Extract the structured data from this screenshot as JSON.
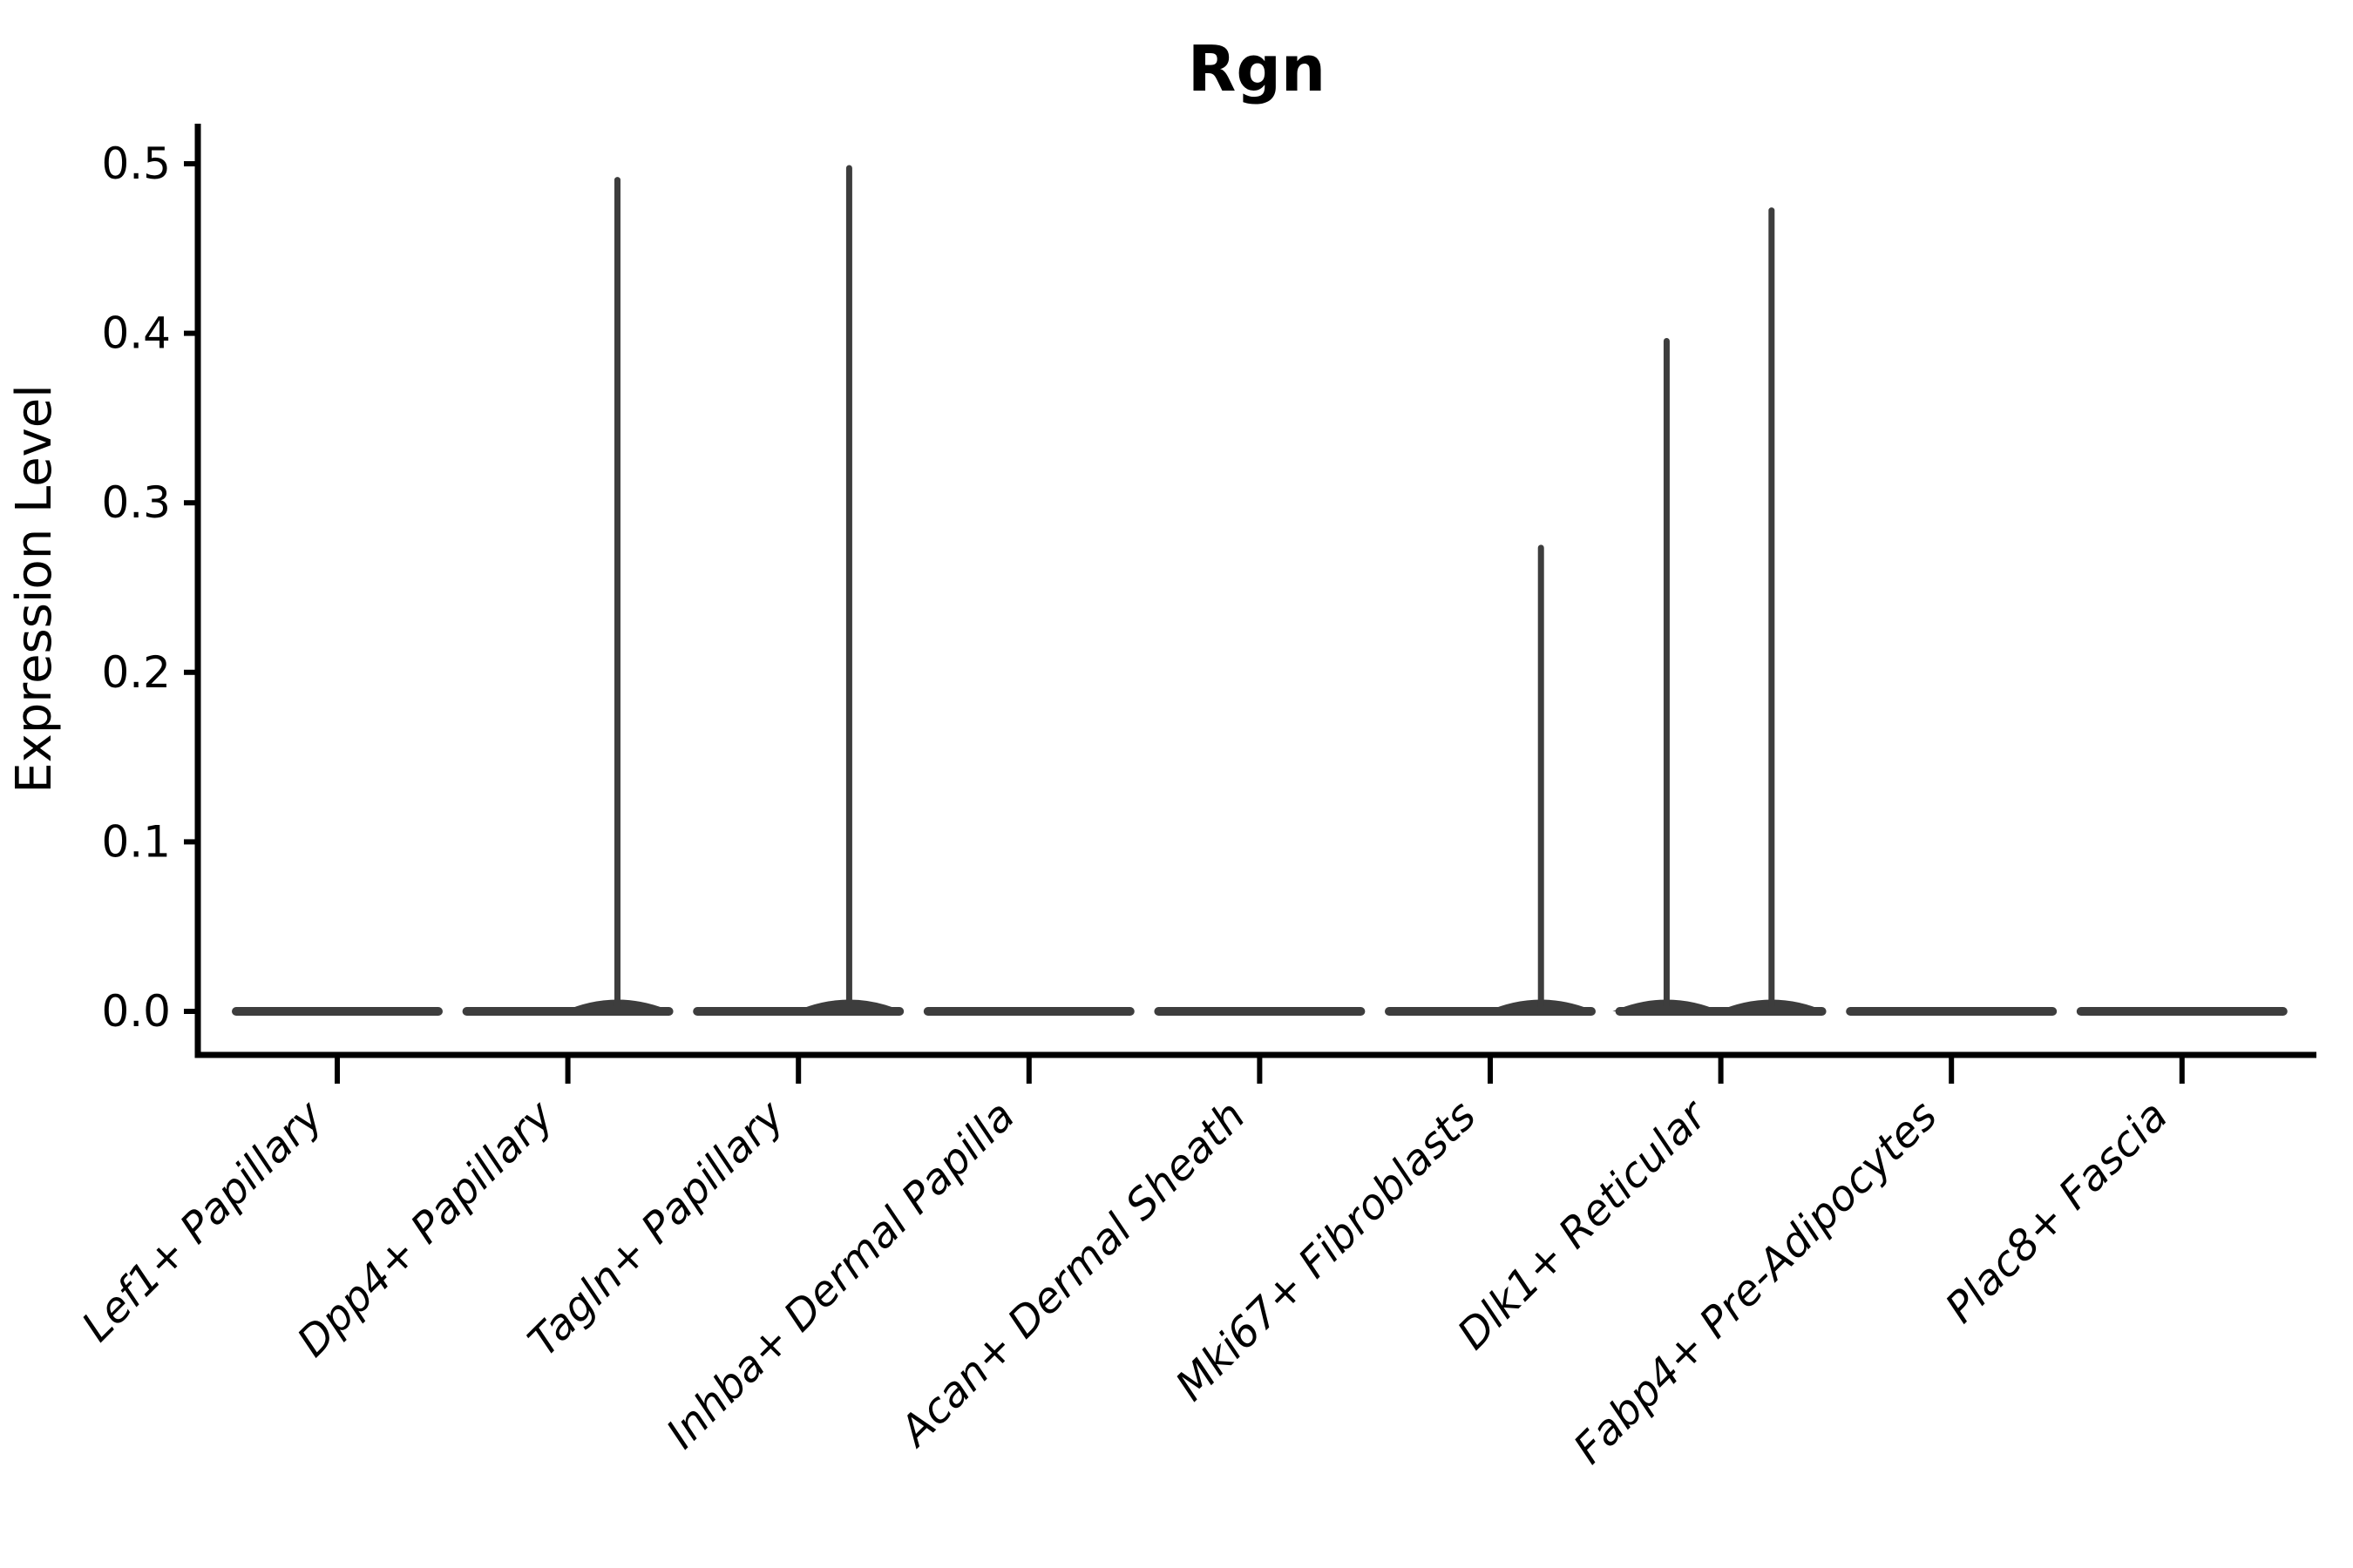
{
  "title": "Rgn",
  "y_axis": {
    "label": "Expression Level",
    "tick_labels": [
      "0.0",
      "0.1",
      "0.2",
      "0.3",
      "0.4",
      "0.5"
    ]
  },
  "x_axis": {
    "tick_labels": [
      "Lef1+ Papillary",
      "Dpp4+ Papillary",
      "Tagln+ Papillary",
      "Inhba+ Dermal Papilla",
      "Acan+ Dermal Sheath",
      "Mki67+ Fibroblasts",
      "Dlk1+ Reticular",
      "Fabp4+ Pre-Adipocytes",
      "Plac8+ Fascia"
    ]
  },
  "chart_data": {
    "type": "violin",
    "title": "Rgn",
    "xlabel": "",
    "ylabel": "Expression Level",
    "ylim": [
      -0.026,
      0.525
    ],
    "yticks": [
      0.0,
      0.1,
      0.2,
      0.3,
      0.4,
      0.5
    ],
    "ytick_labels": [
      "0.0",
      "0.1",
      "0.2",
      "0.3",
      "0.4",
      "0.5"
    ],
    "grid": false,
    "legend": "none",
    "categories": [
      "Lef1+ Papillary",
      "Dpp4+ Papillary",
      "Tagln+ Papillary",
      "Inhba+ Dermal Papilla",
      "Acan+ Dermal Sheath",
      "Mki67+ Fibroblasts",
      "Dlk1+ Reticular",
      "Fabp4+ Pre-Adipocytes",
      "Plac8+ Fascia"
    ],
    "violins": [
      {
        "category": "Lef1+ Papillary",
        "body_value": 0.0,
        "tails": []
      },
      {
        "category": "Dpp4+ Papillary",
        "body_value": 0.0,
        "tails": [
          {
            "max_value": 0.492,
            "offset_frac": 0.215
          }
        ]
      },
      {
        "category": "Tagln+ Papillary",
        "body_value": 0.0,
        "tails": [
          {
            "max_value": 0.499,
            "offset_frac": 0.22
          }
        ]
      },
      {
        "category": "Inhba+ Dermal Papilla",
        "body_value": 0.0,
        "tails": []
      },
      {
        "category": "Acan+ Dermal Sheath",
        "body_value": 0.0,
        "tails": []
      },
      {
        "category": "Mki67+ Fibroblasts",
        "body_value": 0.0,
        "tails": [
          {
            "max_value": 0.275,
            "offset_frac": 0.22
          }
        ]
      },
      {
        "category": "Dlk1+ Reticular",
        "body_value": 0.0,
        "tails": [
          {
            "max_value": 0.397,
            "offset_frac": -0.235
          },
          {
            "max_value": 0.474,
            "offset_frac": 0.22
          }
        ]
      },
      {
        "category": "Fabp4+ Pre-Adipocytes",
        "body_value": 0.0,
        "tails": []
      },
      {
        "category": "Plac8+ Fascia",
        "body_value": 0.0,
        "tails": []
      }
    ],
    "style": {
      "background": "#ffffff",
      "axis_color": "#000000",
      "text_color": "#000000",
      "violin_color": "#3d3d3d"
    }
  }
}
